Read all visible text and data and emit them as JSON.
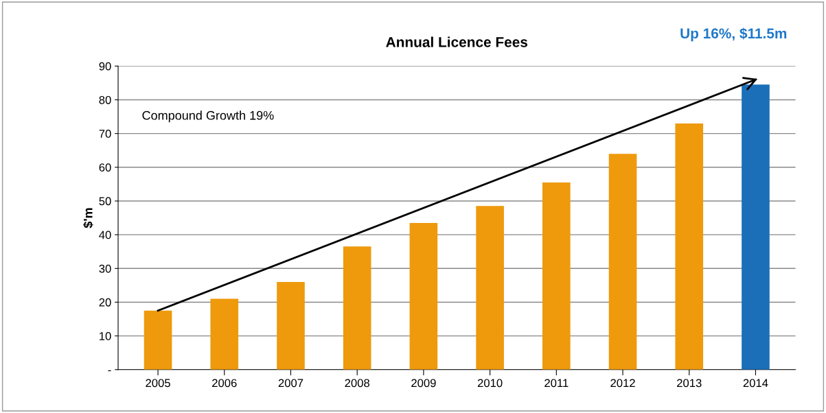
{
  "chart_data": {
    "type": "bar",
    "title": "Annual Licence Fees",
    "ylabel": "$'m",
    "categories": [
      "2005",
      "2006",
      "2007",
      "2008",
      "2009",
      "2010",
      "2011",
      "2012",
      "2013",
      "2014"
    ],
    "series": [
      {
        "values": [
          17.5,
          21,
          26,
          36.5,
          43.5,
          48.5,
          55.5,
          64,
          73,
          84.5
        ],
        "colors": [
          "#ee9a0c",
          "#ee9a0c",
          "#ee9a0c",
          "#ee9a0c",
          "#ee9a0c",
          "#ee9a0c",
          "#ee9a0c",
          "#ee9a0c",
          "#ee9a0c",
          "#1a6fb8"
        ]
      },
      {
        "type": "line",
        "values": [
          17.5,
          null,
          null,
          null,
          null,
          null,
          null,
          null,
          null,
          86
        ],
        "color": "#000000"
      }
    ],
    "ylim": [
      0,
      90
    ],
    "yticks": [
      {
        "value": 0,
        "label": "-"
      },
      10,
      20,
      30,
      40,
      50,
      60,
      70,
      80,
      90
    ],
    "grid": "y",
    "annotations": [
      "Compound Growth 19%",
      "Up 16%, $11.5m"
    ]
  }
}
